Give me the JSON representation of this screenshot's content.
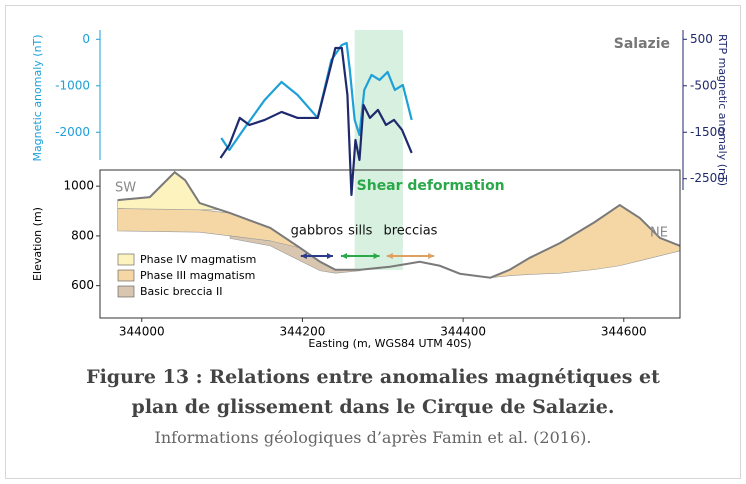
{
  "chart_data": [
    {
      "type": "line",
      "label": "Salazie",
      "ylabel": "Magnetic anomaly (nT)",
      "y2label": "RTP magnetic anomaly (nT)",
      "xlim": [
        343948,
        344670
      ],
      "ylim": [
        -3350,
        200
      ],
      "yticks": [
        0,
        -1000,
        -2000
      ],
      "ycolor": "#1ea0d8",
      "y2lim": [
        -2850,
        700
      ],
      "y2ticks": [
        500,
        -500,
        -1500,
        -2500
      ],
      "y2color": "#1f2a6e",
      "shaded": {
        "label": "Shear deformation",
        "range": [
          344265,
          344325
        ],
        "color": "#d7f0df",
        "text_color": "#2aa84a"
      },
      "series": [
        {
          "color": "#1ea0d8",
          "x": [
            344099,
            344109,
            344128,
            344153,
            344174,
            344194,
            344219,
            344236,
            344249,
            344255,
            344259,
            344265,
            344271,
            344277,
            344286,
            344296,
            344306,
            344315,
            344325,
            344336
          ],
          "values": [
            -2123,
            -2381,
            -1908,
            -1305,
            -918,
            -1198,
            -1692,
            -445,
            -123,
            -80,
            -660,
            -1735,
            -2058,
            -1090,
            -768,
            -875,
            -703,
            -1090,
            -983,
            -1735
          ]
        },
        {
          "color": "#1f2a6e",
          "axis": "y2",
          "x": [
            344098,
            344109,
            344122,
            344134,
            344153,
            344174,
            344194,
            344219,
            344231,
            344241,
            344249,
            344256,
            344261,
            344266,
            344271,
            344276,
            344284,
            344294,
            344304,
            344314,
            344324,
            344336
          ],
          "values": [
            -2053,
            -1773,
            -1192,
            -1343,
            -1235,
            -1063,
            -1192,
            -1192,
            -375,
            313,
            313,
            -698,
            -2848,
            -1666,
            -2096,
            -913,
            -1192,
            -1020,
            -1343,
            -1235,
            -1450,
            -1945
          ]
        }
      ]
    },
    {
      "type": "area",
      "ylabel": "Elevation (m)",
      "xlabel": "Easting (m, WGS84 UTM 40S)",
      "xlim": [
        343948,
        344670
      ],
      "xticks": [
        344000,
        344200,
        344400,
        344600
      ],
      "ylim": [
        470,
        1065
      ],
      "yticks": [
        600,
        800,
        1000
      ],
      "legend": "lower left",
      "ends": [
        "SW",
        "NE"
      ],
      "profile": {
        "color": "#7a7a7a",
        "x": [
          343970,
          344010,
          344041,
          344054,
          344072,
          344110,
          344160,
          344197,
          344222,
          344241,
          344272,
          344309,
          344346,
          344371,
          344396,
          344434,
          344458,
          344483,
          344521,
          344564,
          344595,
          344620,
          344645,
          344670
        ],
        "values": [
          944,
          956,
          1056,
          1024,
          932,
          892,
          832,
          752,
          696,
          664,
          664,
          676,
          696,
          680,
          648,
          632,
          664,
          712,
          772,
          856,
          924,
          872,
          792,
          760
        ]
      },
      "series": [
        {
          "name": "Phase IV magmatism",
          "color": "#fdf3bf",
          "parts": [
            {
              "x": [
                343970,
                344010,
                344041,
                344054,
                344072,
                344095
              ],
              "values": [
                944,
                956,
                1056,
                1024,
                932,
                905
              ],
              "base": [
                910,
                905,
                900,
                900,
                905,
                905
              ]
            }
          ]
        },
        {
          "name": "Phase III magmatism",
          "color": "#f5d7a6",
          "parts": [
            {
              "x": [
                343970,
                344072,
                344110,
                344160,
                344197,
                344222
              ],
              "values": [
                910,
                905,
                892,
                832,
                752,
                696
              ],
              "base": [
                820,
                815,
                800,
                780,
                730,
                696
              ]
            },
            {
              "x": [
                344434,
                344458,
                344483,
                344521,
                344564,
                344595,
                344620,
                344645,
                344670
              ],
              "values": [
                632,
                664,
                712,
                772,
                856,
                924,
                872,
                792,
                760
              ],
              "base": [
                632,
                640,
                645,
                650,
                665,
                680,
                700,
                720,
                740
              ]
            }
          ]
        },
        {
          "name": "Basic breccia II",
          "color": "#d8c6b0",
          "parts": [
            {
              "x": [
                344110,
                344160,
                344197,
                344222,
                344241,
                344272
              ],
              "values": [
                800,
                780,
                752,
                696,
                664,
                664
              ],
              "base": [
                790,
                760,
                700,
                660,
                650,
                660
              ]
            }
          ]
        }
      ],
      "arrows": [
        {
          "label": "gabbros",
          "range": [
            344198,
            344238
          ],
          "color": "#2b3a8c"
        },
        {
          "label": "sills",
          "range": [
            344248,
            344296
          ],
          "color": "#2aa84a"
        },
        {
          "label": "breccias",
          "range": [
            344305,
            344364
          ],
          "color": "#e0a060"
        }
      ]
    }
  ],
  "caption": {
    "title": [
      "Figure 13 : Relations entre anomalies magnétiques et",
      "plan de glissement dans le Cirque de Salazie."
    ],
    "note": "Informations géologiques d’après Famin et al. (2016)."
  }
}
